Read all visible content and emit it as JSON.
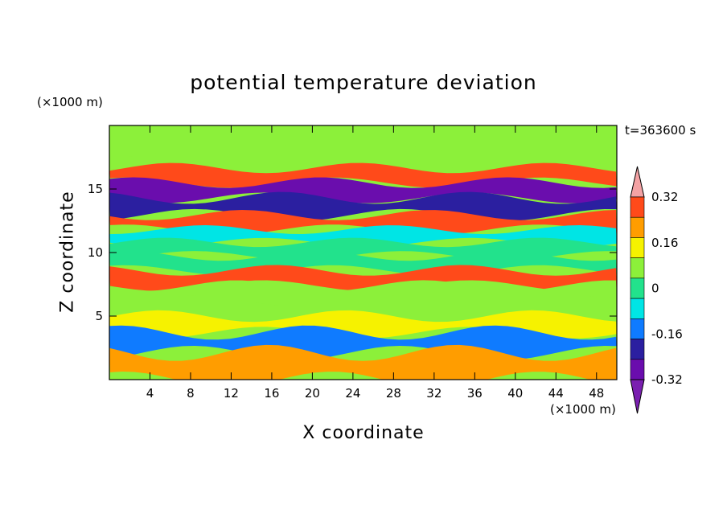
{
  "chart_data": {
    "type": "heatmap",
    "title": "potential temperature deviation",
    "xlabel": "X coordinate",
    "ylabel": "Z coordinate",
    "x_unit_label": "(×1000 m)",
    "y_unit_label": "(×1000 m)",
    "time_label": "t=363600 s",
    "xlim": [
      0,
      50
    ],
    "ylim": [
      0,
      20
    ],
    "x_ticks": [
      4,
      8,
      12,
      16,
      20,
      24,
      28,
      32,
      36,
      40,
      44,
      48
    ],
    "y_ticks": [
      5,
      10,
      15
    ],
    "colorbar": {
      "levels": [
        -0.4,
        -0.32,
        -0.24,
        -0.16,
        -0.08,
        0,
        0.08,
        0.16,
        0.24,
        0.32,
        0.4
      ],
      "tick_labels": [
        "-0.32",
        "-0.16",
        "0",
        "0.16",
        "0.32"
      ],
      "tick_values": [
        -0.32,
        -0.16,
        0,
        0.16,
        0.32
      ],
      "colors": [
        "#7a1fb0",
        "#6a0dad",
        "#2b1fa0",
        "#0f7bff",
        "#00e5e5",
        "#22e28c",
        "#8cf03a",
        "#f6f200",
        "#ff9d00",
        "#ff4a1a",
        "#f4a2a4"
      ],
      "extend": "both"
    },
    "bands": [
      {
        "z": 18.6,
        "value": 0.02
      },
      {
        "z": 17.3,
        "value": 0.05
      },
      {
        "z": 16.0,
        "value": 0.3
      },
      {
        "z": 15.0,
        "value": -0.38
      },
      {
        "z": 13.6,
        "value": -0.3
      },
      {
        "z": 12.3,
        "value": 0.3
      },
      {
        "z": 11.3,
        "value": -0.12
      },
      {
        "z": 10.3,
        "value": -0.06
      },
      {
        "z": 9.2,
        "value": -0.02
      },
      {
        "z": 8.0,
        "value": 0.3
      },
      {
        "z": 6.8,
        "value": 0.02
      },
      {
        "z": 5.6,
        "value": 0.06
      },
      {
        "z": 4.4,
        "value": 0.08
      },
      {
        "z": 3.0,
        "value": -0.2
      },
      {
        "z": 1.2,
        "value": 0.2
      }
    ]
  }
}
